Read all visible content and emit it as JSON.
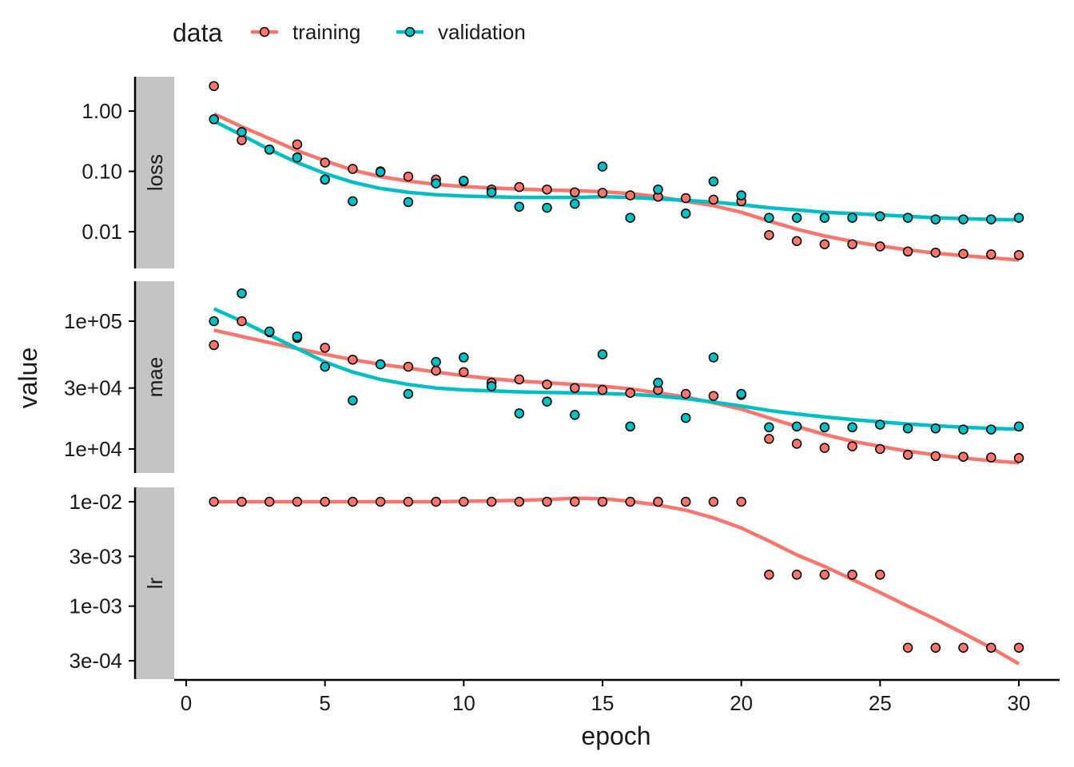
{
  "chart_data": {
    "type": "scatter",
    "xlabel": "epoch",
    "ylabel": "value",
    "xlim": [
      -0.5,
      30.5
    ],
    "x_ticks": [
      0,
      5,
      10,
      15,
      20,
      25,
      30
    ],
    "x_tick_labels": [
      "0",
      "5",
      "10",
      "15",
      "20",
      "25",
      "30"
    ],
    "grid": false,
    "legend": {
      "title": "data",
      "position": "top",
      "entries": [
        {
          "name": "training",
          "color": "#F8766D"
        },
        {
          "name": "validation",
          "color": "#00BFC4"
        }
      ]
    },
    "colors": {
      "training": "#F8766D",
      "validation": "#00BFC4",
      "strip": "#c4c4c4"
    },
    "panels": [
      {
        "label": "loss",
        "scale": "log10",
        "y_ticks": [
          1.0,
          0.1,
          0.01
        ],
        "y_tick_labels": [
          "1.00",
          "0.10",
          "0.01"
        ],
        "series": [
          {
            "name": "training",
            "x": [
              1,
              2,
              3,
              4,
              5,
              6,
              7,
              8,
              9,
              10,
              11,
              12,
              13,
              14,
              15,
              16,
              17,
              18,
              19,
              20,
              21,
              22,
              23,
              24,
              25,
              26,
              27,
              28,
              29,
              30
            ],
            "values": [
              2.6,
              0.33,
              0.23,
              0.28,
              0.14,
              0.11,
              0.1,
              0.082,
              0.073,
              0.068,
              0.05,
              0.055,
              0.05,
              0.045,
              0.044,
              0.04,
              0.038,
              0.036,
              0.034,
              0.032,
              0.0088,
              0.007,
              0.0062,
              0.0062,
              0.0057,
              0.0047,
              0.0045,
              0.0043,
              0.0042,
              0.0041
            ],
            "trend": [
              0.9,
              0.55,
              0.35,
              0.22,
              0.15,
              0.105,
              0.082,
              0.069,
              0.061,
              0.056,
              0.053,
              0.051,
              0.049,
              0.048,
              0.046,
              0.043,
              0.038,
              0.032,
              0.027,
              0.021,
              0.015,
              0.011,
              0.0085,
              0.0069,
              0.0058,
              0.005,
              0.0044,
              0.004,
              0.0037,
              0.0034
            ]
          },
          {
            "name": "validation",
            "x": [
              1,
              2,
              3,
              4,
              5,
              6,
              7,
              8,
              9,
              10,
              11,
              12,
              13,
              14,
              15,
              16,
              17,
              18,
              19,
              20,
              21,
              22,
              23,
              24,
              25,
              26,
              27,
              28,
              29,
              30
            ],
            "values": [
              0.73,
              0.45,
              0.23,
              0.17,
              0.073,
              0.032,
              0.098,
              0.031,
              0.063,
              0.07,
              0.045,
              0.026,
              0.025,
              0.029,
              0.12,
              0.017,
              0.05,
              0.02,
              0.068,
              0.04,
              0.017,
              0.017,
              0.017,
              0.017,
              0.018,
              0.017,
              0.016,
              0.016,
              0.016,
              0.017
            ],
            "trend": [
              0.68,
              0.4,
              0.23,
              0.14,
              0.092,
              0.066,
              0.052,
              0.045,
              0.041,
              0.039,
              0.038,
              0.037,
              0.037,
              0.037,
              0.038,
              0.037,
              0.035,
              0.033,
              0.031,
              0.028,
              0.025,
              0.023,
              0.021,
              0.02,
              0.019,
              0.018,
              0.017,
              0.0165,
              0.016,
              0.0157
            ]
          }
        ]
      },
      {
        "label": "mae",
        "scale": "log10",
        "y_ticks": [
          100000,
          30000,
          10000
        ],
        "y_tick_labels": [
          "1e+05",
          "3e+04",
          "1e+04"
        ],
        "series": [
          {
            "name": "training",
            "x": [
              1,
              2,
              3,
              4,
              5,
              6,
              7,
              8,
              9,
              10,
              11,
              12,
              13,
              14,
              15,
              16,
              17,
              18,
              19,
              20,
              21,
              22,
              23,
              24,
              25,
              26,
              27,
              28,
              29,
              30
            ],
            "values": [
              65000,
              100000,
              82000,
              74000,
              62000,
              50000,
              46000,
              44000,
              41000,
              40000,
              33000,
              35000,
              32000,
              30000,
              29000,
              27500,
              29000,
              27000,
              26000,
              26500,
              12000,
              11000,
              10200,
              10500,
              10000,
              9000,
              8800,
              8700,
              8600,
              8500
            ],
            "trend": [
              85000,
              76000,
              68000,
              61000,
              55000,
              50000,
              46000,
              43000,
              40000,
              37500,
              35500,
              34000,
              33000,
              32000,
              31000,
              29500,
              27500,
              25500,
              23000,
              20500,
              17500,
              15000,
              13000,
              11500,
              10500,
              9600,
              9000,
              8500,
              8100,
              7800
            ]
          },
          {
            "name": "validation",
            "x": [
              1,
              2,
              3,
              4,
              5,
              6,
              7,
              8,
              9,
              10,
              11,
              12,
              13,
              14,
              15,
              16,
              17,
              18,
              19,
              20,
              21,
              22,
              23,
              24,
              25,
              26,
              27,
              28,
              29,
              30
            ],
            "values": [
              100000,
              165000,
              83000,
              76000,
              44000,
              24000,
              46000,
              27000,
              48000,
              52000,
              31000,
              19000,
              23500,
              18500,
              55000,
              15000,
              33000,
              17500,
              52000,
              27000,
              14800,
              15000,
              14800,
              14800,
              15500,
              14500,
              14500,
              14200,
              14200,
              15000
            ],
            "trend": [
              125000,
              100000,
              78000,
              61000,
              48000,
              40000,
              35000,
              32000,
              30000,
              29000,
              28500,
              28000,
              27700,
              27500,
              27200,
              26800,
              26000,
              24800,
              23300,
              21700,
              20000,
              18800,
              17800,
              17000,
              16300,
              15700,
              15200,
              14800,
              14500,
              14300
            ]
          }
        ]
      },
      {
        "label": "lr",
        "scale": "log10",
        "y_ticks": [
          0.01,
          0.003,
          0.001,
          0.0003
        ],
        "y_tick_labels": [
          "1e-02",
          "3e-03",
          "1e-03",
          "3e-04"
        ],
        "series": [
          {
            "name": "training",
            "x": [
              1,
              2,
              3,
              4,
              5,
              6,
              7,
              8,
              9,
              10,
              11,
              12,
              13,
              14,
              15,
              16,
              17,
              18,
              19,
              20,
              21,
              22,
              23,
              24,
              25,
              26,
              27,
              28,
              29,
              30
            ],
            "values": [
              0.01,
              0.01,
              0.01,
              0.01,
              0.01,
              0.01,
              0.01,
              0.01,
              0.01,
              0.01,
              0.01,
              0.01,
              0.01,
              0.01,
              0.01,
              0.01,
              0.01,
              0.01,
              0.01,
              0.01,
              0.002,
              0.002,
              0.002,
              0.002,
              0.002,
              0.0004,
              0.0004,
              0.0004,
              0.0004,
              0.0004
            ],
            "trend": [
              0.01,
              0.01,
              0.01,
              0.01,
              0.01,
              0.01,
              0.01,
              0.01,
              0.01,
              0.0101,
              0.0102,
              0.0103,
              0.0105,
              0.0108,
              0.0107,
              0.0101,
              0.0093,
              0.0083,
              0.007,
              0.0056,
              0.0042,
              0.0031,
              0.0024,
              0.0018,
              0.00135,
              0.001,
              0.00075,
              0.00055,
              0.0004,
              0.00028
            ]
          }
        ]
      }
    ]
  }
}
